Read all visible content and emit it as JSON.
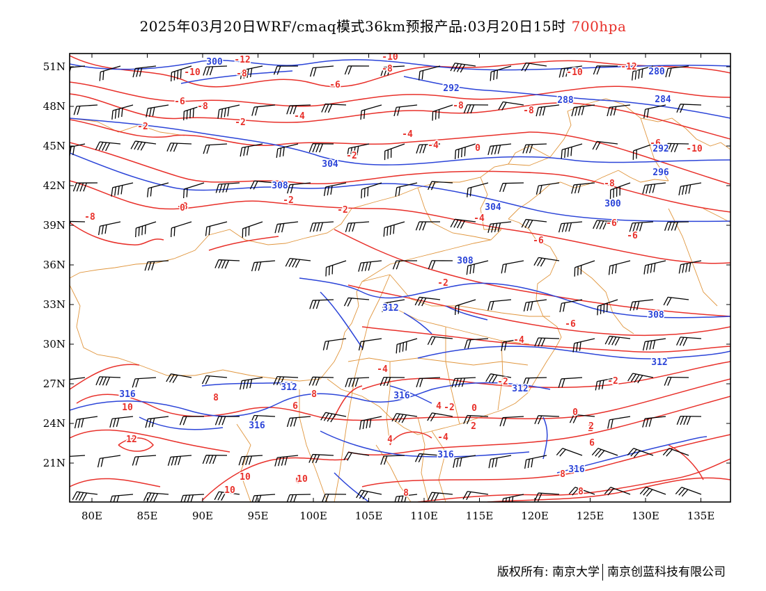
{
  "title": {
    "main": "2025年03月20日WRF/cmaq模式36km预报产品:03月20日15时",
    "level": "700hpa"
  },
  "axes": {
    "lat_labels": [
      "51N",
      "48N",
      "45N",
      "42N",
      "39N",
      "36N",
      "33N",
      "30N",
      "27N",
      "24N",
      "21N"
    ],
    "lon_labels": [
      "80E",
      "85E",
      "90E",
      "95E",
      "100E",
      "105E",
      "110E",
      "115E",
      "120E",
      "125E",
      "130E",
      "135E"
    ]
  },
  "contours": {
    "height_color": "#2b44d8",
    "temp_color": "#e8302a",
    "border_color": "#e0953c",
    "barb_color": "#000000",
    "height_labels": [
      "300",
      "292",
      "288",
      "284",
      "280",
      "292",
      "296",
      "304",
      "308",
      "304",
      "300",
      "308",
      "308",
      "312",
      "316",
      "312",
      "312",
      "312",
      "316",
      "316",
      "316",
      "316"
    ],
    "temp_labels": [
      "-12",
      "-10",
      "-8",
      "-10",
      "-8",
      "-6",
      "-8",
      "-10",
      "-12",
      "-8",
      "-6",
      "-8",
      "-2",
      "-2",
      "-4",
      "-4",
      "-2",
      "-4",
      "0",
      "-8",
      "-10",
      "-6",
      "-2",
      "-4",
      "-6",
      "-6",
      "-6",
      "-8",
      "-8",
      "-2",
      "-2",
      "-4",
      "-6",
      "-4",
      "-2",
      "-2",
      "-2",
      "0",
      "10",
      "12",
      "8",
      "6",
      "8",
      "2",
      "0",
      "2",
      "4",
      "-4",
      "4",
      "6",
      "10",
      "10",
      "10",
      "8",
      "8",
      "8",
      "0",
      "2",
      "4",
      "6"
    ]
  },
  "footer": {
    "copyright": "版权所有: 南京大学",
    "company": "南京创蓝科技有限公司"
  }
}
